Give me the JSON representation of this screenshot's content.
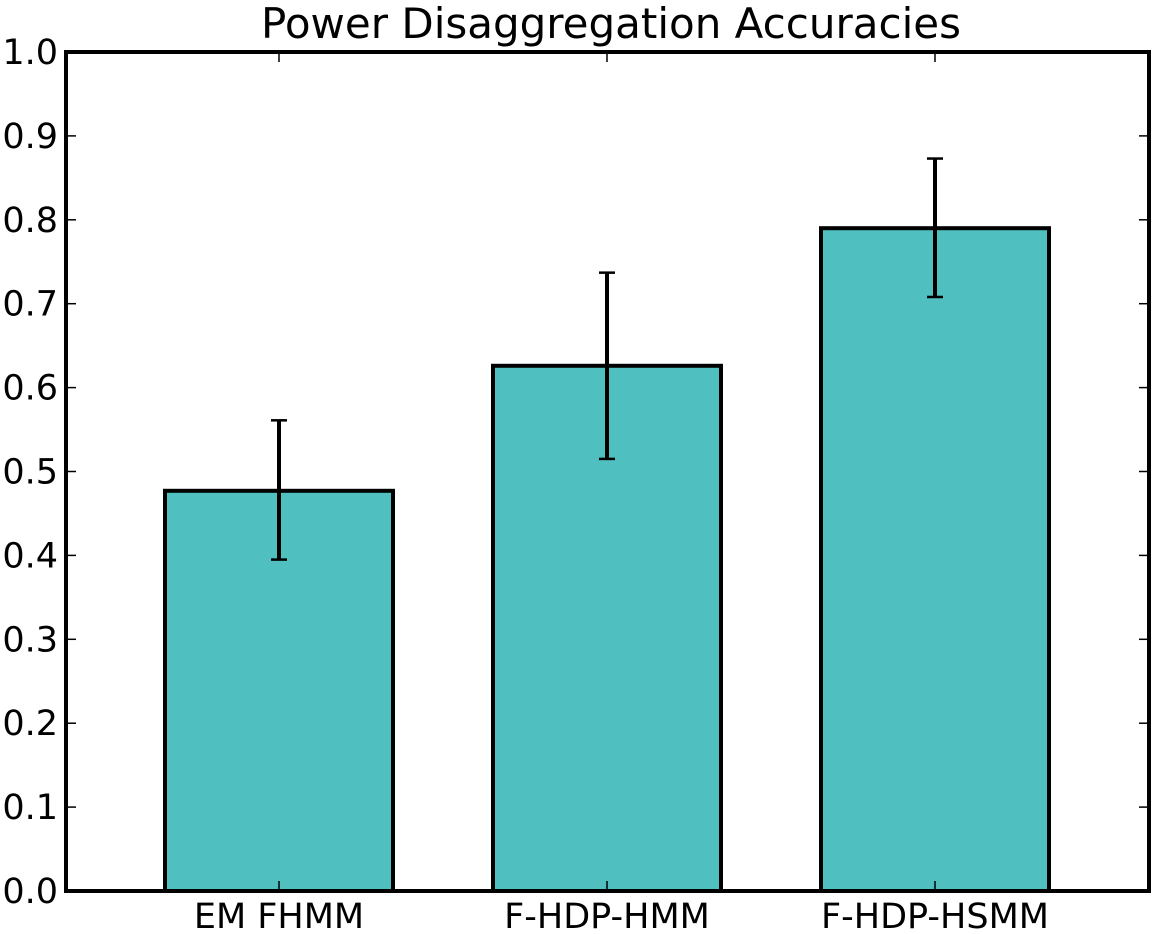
{
  "chart_data": {
    "type": "bar",
    "title": "Power Disaggregation Accuracies",
    "xlabel": "",
    "ylabel": "",
    "categories": [
      "EM FHMM",
      "F-HDP-HMM",
      "F-HDP-HSMM"
    ],
    "values": [
      0.477,
      0.626,
      0.79
    ],
    "error_low": [
      0.395,
      0.515,
      0.708
    ],
    "error_high": [
      0.561,
      0.737,
      0.873
    ],
    "ylim": [
      0.0,
      1.0
    ],
    "yticks": [
      "0.0",
      "0.1",
      "0.2",
      "0.3",
      "0.4",
      "0.5",
      "0.6",
      "0.7",
      "0.8",
      "0.9",
      "1.0"
    ],
    "grid": false,
    "legend": "none",
    "colors": {
      "bar_fill": "#4fbfbf",
      "bar_edge": "#000000",
      "error_bar": "#000000"
    }
  }
}
